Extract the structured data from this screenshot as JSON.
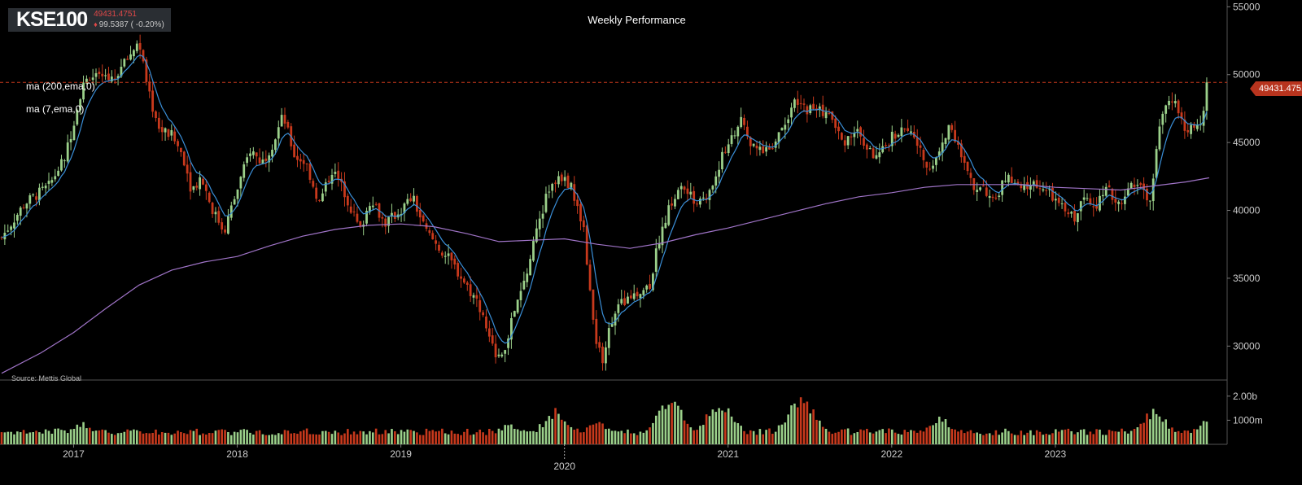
{
  "header": {
    "ticker": "KSE100",
    "last_price": "49431.4751",
    "change_text": "99.5387 ( -0.20%)",
    "change_direction": "down",
    "title": "Weekly Performance"
  },
  "legend": {
    "ma_long": "ma (200,ema,0)",
    "ma_short": "ma (7,ema,0)"
  },
  "source": "Source: Mettis Global",
  "price_tag": "49431.4751",
  "colors": {
    "up": "#9bd08a",
    "down": "#c8391c",
    "ma_short": "#3a8fd8",
    "ma_long": "#a074c8",
    "last_line": "#c8391c",
    "background": "#000000"
  },
  "chart_data": {
    "type": "candlestick",
    "interval": "weekly",
    "y_axis": {
      "range": [
        27500,
        55500
      ],
      "ticks": [
        30000,
        35000,
        40000,
        45000,
        50000,
        55000
      ],
      "tick_labels": [
        "30000",
        "35000",
        "40000",
        "45000",
        "50000",
        "55000"
      ]
    },
    "volume_axis": {
      "range": [
        0,
        2500000000
      ],
      "ticks": [
        1000000000,
        2000000000
      ],
      "tick_labels": [
        "1000m",
        "2.00b"
      ]
    },
    "x_axis": {
      "range": [
        2016.55,
        2024.05
      ],
      "ticks": [
        2017,
        2018,
        2019,
        2020,
        2021,
        2022,
        2023
      ],
      "tick_labels": [
        "2017",
        "2018",
        "2019",
        "2020",
        "2021",
        "2022",
        "2023"
      ]
    },
    "last_value": 49431.4751,
    "close_path": [
      [
        2016.56,
        38000
      ],
      [
        2016.7,
        40500
      ],
      [
        2016.85,
        41800
      ],
      [
        2016.95,
        44000
      ],
      [
        2017.0,
        46500
      ],
      [
        2017.05,
        49000
      ],
      [
        2017.1,
        50000
      ],
      [
        2017.18,
        49500
      ],
      [
        2017.25,
        49800
      ],
      [
        2017.32,
        51000
      ],
      [
        2017.4,
        52500
      ],
      [
        2017.45,
        49000
      ],
      [
        2017.52,
        46000
      ],
      [
        2017.6,
        45500
      ],
      [
        2017.67,
        44000
      ],
      [
        2017.72,
        41500
      ],
      [
        2017.78,
        42500
      ],
      [
        2017.85,
        40000
      ],
      [
        2017.92,
        38500
      ],
      [
        2018.0,
        41500
      ],
      [
        2018.08,
        44500
      ],
      [
        2018.15,
        43500
      ],
      [
        2018.22,
        45000
      ],
      [
        2018.28,
        47000
      ],
      [
        2018.35,
        44000
      ],
      [
        2018.42,
        43500
      ],
      [
        2018.5,
        40500
      ],
      [
        2018.58,
        43000
      ],
      [
        2018.65,
        41500
      ],
      [
        2018.75,
        38500
      ],
      [
        2018.82,
        41000
      ],
      [
        2018.9,
        39000
      ],
      [
        2019.0,
        40000
      ],
      [
        2019.07,
        41000
      ],
      [
        2019.15,
        38500
      ],
      [
        2019.25,
        37000
      ],
      [
        2019.32,
        36000
      ],
      [
        2019.4,
        34500
      ],
      [
        2019.48,
        33000
      ],
      [
        2019.55,
        30000
      ],
      [
        2019.62,
        29000
      ],
      [
        2019.68,
        32000
      ],
      [
        2019.75,
        34500
      ],
      [
        2019.82,
        38000
      ],
      [
        2019.9,
        41500
      ],
      [
        2019.98,
        42500
      ],
      [
        2020.05,
        41500
      ],
      [
        2020.12,
        38500
      ],
      [
        2020.18,
        31000
      ],
      [
        2020.23,
        29000
      ],
      [
        2020.3,
        32500
      ],
      [
        2020.38,
        33500
      ],
      [
        2020.45,
        34000
      ],
      [
        2020.52,
        34500
      ],
      [
        2020.58,
        38000
      ],
      [
        2020.65,
        40500
      ],
      [
        2020.72,
        41800
      ],
      [
        2020.8,
        40500
      ],
      [
        2020.88,
        41000
      ],
      [
        2020.95,
        43500
      ],
      [
        2021.02,
        45500
      ],
      [
        2021.08,
        46500
      ],
      [
        2021.15,
        44500
      ],
      [
        2021.25,
        44500
      ],
      [
        2021.32,
        46000
      ],
      [
        2021.4,
        47800
      ],
      [
        2021.48,
        47500
      ],
      [
        2021.55,
        47500
      ],
      [
        2021.62,
        47000
      ],
      [
        2021.7,
        45000
      ],
      [
        2021.78,
        46000
      ],
      [
        2021.85,
        44500
      ],
      [
        2021.92,
        43800
      ],
      [
        2022.0,
        45500
      ],
      [
        2022.08,
        46000
      ],
      [
        2022.15,
        45000
      ],
      [
        2022.22,
        43000
      ],
      [
        2022.3,
        44500
      ],
      [
        2022.36,
        46500
      ],
      [
        2022.42,
        44000
      ],
      [
        2022.5,
        41500
      ],
      [
        2022.55,
        42000
      ],
      [
        2022.62,
        40500
      ],
      [
        2022.7,
        42500
      ],
      [
        2022.78,
        41500
      ],
      [
        2022.88,
        42000
      ],
      [
        2022.98,
        41000
      ],
      [
        2023.05,
        40000
      ],
      [
        2023.12,
        39500
      ],
      [
        2023.18,
        41000
      ],
      [
        2023.25,
        40500
      ],
      [
        2023.32,
        41500
      ],
      [
        2023.38,
        40500
      ],
      [
        2023.45,
        41500
      ],
      [
        2023.52,
        42000
      ],
      [
        2023.58,
        40500
      ],
      [
        2023.62,
        44500
      ],
      [
        2023.66,
        47500
      ],
      [
        2023.7,
        48500
      ],
      [
        2023.75,
        47500
      ],
      [
        2023.79,
        45500
      ],
      [
        2023.84,
        46000
      ],
      [
        2023.88,
        46500
      ],
      [
        2023.91,
        47000
      ],
      [
        2023.94,
        49431
      ]
    ],
    "ma_200_path": [
      [
        2016.56,
        28000
      ],
      [
        2016.8,
        29500
      ],
      [
        2017.0,
        31000
      ],
      [
        2017.2,
        32800
      ],
      [
        2017.4,
        34500
      ],
      [
        2017.6,
        35600
      ],
      [
        2017.8,
        36200
      ],
      [
        2018.0,
        36600
      ],
      [
        2018.2,
        37400
      ],
      [
        2018.4,
        38100
      ],
      [
        2018.6,
        38600
      ],
      [
        2018.8,
        38900
      ],
      [
        2019.0,
        39000
      ],
      [
        2019.2,
        38800
      ],
      [
        2019.4,
        38300
      ],
      [
        2019.6,
        37700
      ],
      [
        2019.8,
        37800
      ],
      [
        2020.0,
        37900
      ],
      [
        2020.2,
        37500
      ],
      [
        2020.4,
        37200
      ],
      [
        2020.6,
        37600
      ],
      [
        2020.8,
        38200
      ],
      [
        2021.0,
        38700
      ],
      [
        2021.2,
        39300
      ],
      [
        2021.4,
        39900
      ],
      [
        2021.6,
        40500
      ],
      [
        2021.8,
        41000
      ],
      [
        2022.0,
        41300
      ],
      [
        2022.2,
        41700
      ],
      [
        2022.4,
        41900
      ],
      [
        2022.6,
        41900
      ],
      [
        2022.8,
        41900
      ],
      [
        2023.0,
        41700
      ],
      [
        2023.2,
        41600
      ],
      [
        2023.4,
        41500
      ],
      [
        2023.6,
        41800
      ],
      [
        2023.8,
        42100
      ],
      [
        2023.94,
        42400
      ]
    ],
    "volume_peaks": [
      [
        2017.05,
        1000000000
      ],
      [
        2017.35,
        700000000
      ],
      [
        2019.65,
        900000000
      ],
      [
        2019.95,
        1500000000
      ],
      [
        2020.2,
        1000000000
      ],
      [
        2020.65,
        2100000000
      ],
      [
        2020.95,
        1900000000
      ],
      [
        2021.45,
        2200000000
      ],
      [
        2022.3,
        1200000000
      ],
      [
        2023.6,
        1500000000
      ],
      [
        2023.94,
        1100000000
      ]
    ]
  }
}
